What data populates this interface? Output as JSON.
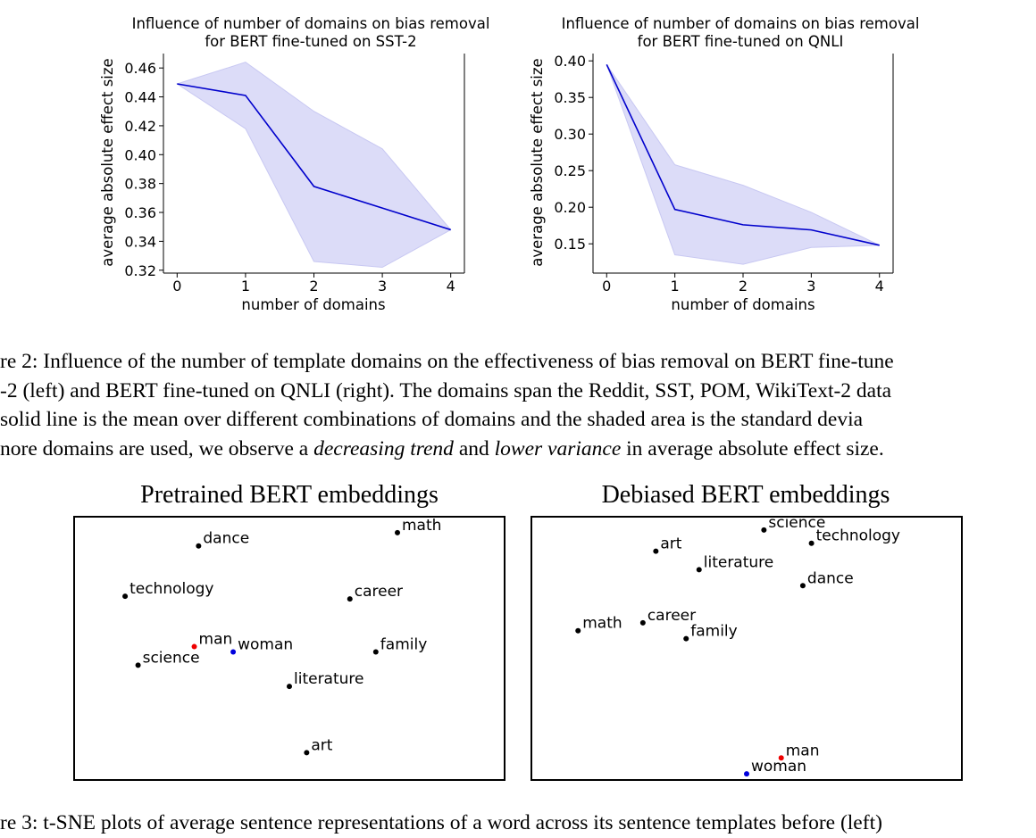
{
  "figure2": {
    "charts": [
      {
        "title_line1": "Influence of number of domains on bias removal",
        "title_line2": "for BERT fine-tuned on SST-2",
        "xlabel": "number of domains",
        "ylabel": "average absolute effect size",
        "yticks": [
          "0.32",
          "0.34",
          "0.36",
          "0.38",
          "0.40",
          "0.42",
          "0.44",
          "0.46"
        ],
        "xticks": [
          "0",
          "1",
          "2",
          "3",
          "4"
        ]
      },
      {
        "title_line1": "Influence of number of domains on bias removal",
        "title_line2": "for BERT fine-tuned on QNLI",
        "xlabel": "number of domains",
        "ylabel": "average absolute effect size",
        "yticks": [
          "0.15",
          "0.20",
          "0.25",
          "0.30",
          "0.35",
          "0.40"
        ],
        "xticks": [
          "0",
          "1",
          "2",
          "3",
          "4"
        ]
      }
    ],
    "caption": {
      "line1": "re 2: Influence of the number of template domains on the effectiveness of bias removal on BERT fine-tune",
      "line2": "-2 (left) and BERT fine-tuned on QNLI (right). The domains span the Reddit, SST, POM, WikiText-2 data",
      "line3": "solid line is the mean over different combinations of domains and the shaded area is the standard devia",
      "line4_a": "nore domains are used, we observe a ",
      "line4_em1": "decreasing trend",
      "line4_b": " and ",
      "line4_em2": "lower variance",
      "line4_c": " in average absolute effect size."
    }
  },
  "chart_data": [
    {
      "type": "line",
      "title": "Influence of number of domains on bias removal for BERT fine-tuned on SST-2",
      "xlabel": "number of domains",
      "ylabel": "average absolute effect size",
      "x": [
        0,
        1,
        2,
        3,
        4
      ],
      "mean": [
        0.449,
        0.441,
        0.378,
        0.363,
        0.348
      ],
      "upper": [
        0.449,
        0.464,
        0.43,
        0.404,
        0.348
      ],
      "lower": [
        0.449,
        0.418,
        0.326,
        0.322,
        0.348
      ],
      "xlim": [
        -0.2,
        4.2
      ],
      "ylim": [
        0.318,
        0.47
      ],
      "yticks": [
        0.32,
        0.34,
        0.36,
        0.38,
        0.4,
        0.42,
        0.44,
        0.46
      ],
      "line_color": "#0000cc",
      "band_color": "#dcdcf8",
      "grid": false
    },
    {
      "type": "line",
      "title": "Influence of number of domains on bias removal for BERT fine-tuned on QNLI",
      "xlabel": "number of domains",
      "ylabel": "average absolute effect size",
      "x": [
        0,
        1,
        2,
        3,
        4
      ],
      "mean": [
        0.395,
        0.197,
        0.176,
        0.169,
        0.148
      ],
      "upper": [
        0.395,
        0.258,
        0.23,
        0.193,
        0.148
      ],
      "lower": [
        0.395,
        0.135,
        0.122,
        0.145,
        0.148
      ],
      "xlim": [
        -0.2,
        4.2
      ],
      "ylim": [
        0.11,
        0.41
      ],
      "yticks": [
        0.15,
        0.2,
        0.25,
        0.3,
        0.35,
        0.4
      ],
      "line_color": "#0000cc",
      "band_color": "#dcdcf8",
      "grid": false
    }
  ],
  "figure3": {
    "panels": [
      {
        "title": "Pretrained BERT embeddings",
        "points": [
          {
            "label": "dance",
            "x": 0.29,
            "y": 0.1,
            "color": "#000000"
          },
          {
            "label": "math",
            "x": 0.75,
            "y": 0.05,
            "color": "#000000"
          },
          {
            "label": "technology",
            "x": 0.12,
            "y": 0.29,
            "color": "#000000"
          },
          {
            "label": "career",
            "x": 0.64,
            "y": 0.3,
            "color": "#000000"
          },
          {
            "label": "man",
            "x": 0.28,
            "y": 0.48,
            "color": "#ee0000"
          },
          {
            "label": "woman",
            "x": 0.37,
            "y": 0.5,
            "color": "#0000dd"
          },
          {
            "label": "family",
            "x": 0.7,
            "y": 0.5,
            "color": "#000000"
          },
          {
            "label": "science",
            "x": 0.15,
            "y": 0.55,
            "color": "#000000"
          },
          {
            "label": "literature",
            "x": 0.5,
            "y": 0.63,
            "color": "#000000"
          },
          {
            "label": "art",
            "x": 0.54,
            "y": 0.88,
            "color": "#000000"
          }
        ]
      },
      {
        "title": "Debiased BERT embeddings",
        "points": [
          {
            "label": "science",
            "x": 0.54,
            "y": 0.04,
            "color": "#000000"
          },
          {
            "label": "technology",
            "x": 0.65,
            "y": 0.09,
            "color": "#000000"
          },
          {
            "label": "art",
            "x": 0.29,
            "y": 0.12,
            "color": "#000000"
          },
          {
            "label": "literature",
            "x": 0.39,
            "y": 0.19,
            "color": "#000000"
          },
          {
            "label": "dance",
            "x": 0.63,
            "y": 0.25,
            "color": "#000000"
          },
          {
            "label": "career",
            "x": 0.26,
            "y": 0.39,
            "color": "#000000"
          },
          {
            "label": "math",
            "x": 0.11,
            "y": 0.42,
            "color": "#000000"
          },
          {
            "label": "family",
            "x": 0.36,
            "y": 0.45,
            "color": "#000000"
          },
          {
            "label": "man",
            "x": 0.58,
            "y": 0.9,
            "color": "#ee0000"
          },
          {
            "label": "woman",
            "x": 0.5,
            "y": 0.96,
            "color": "#0000dd"
          }
        ]
      }
    ],
    "caption": "re 3: t-SNE plots of average sentence representations of a word across its sentence templates before (left)"
  }
}
